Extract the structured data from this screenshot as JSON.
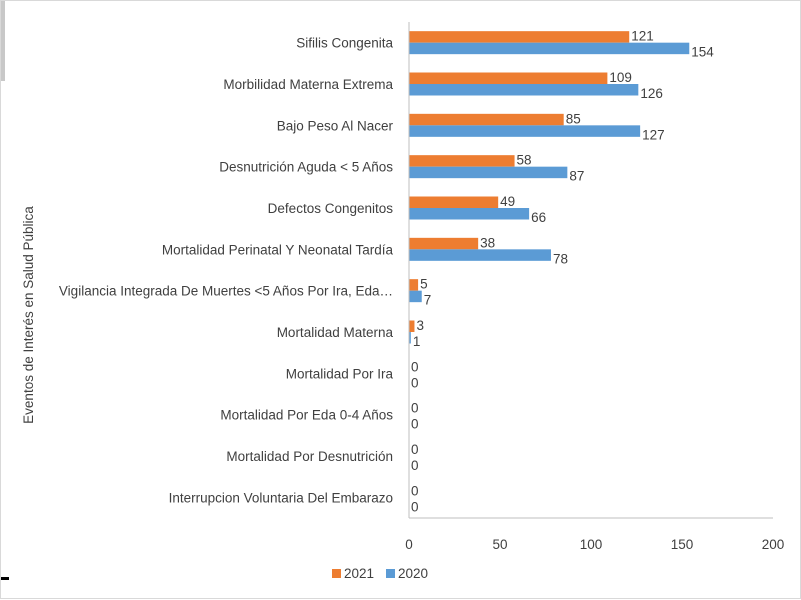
{
  "chart_data": {
    "type": "bar",
    "orientation": "horizontal",
    "title": "",
    "xlabel": "",
    "ylabel": "Eventos de Interés en Salud Pública",
    "xlim": [
      0,
      200
    ],
    "xticks": [
      0,
      50,
      100,
      150,
      200
    ],
    "grid": false,
    "legend_position": "bottom",
    "categories": [
      "Sifilis Congenita",
      "Morbilidad Materna Extrema",
      "Bajo Peso Al Nacer",
      "Desnutrición Aguda < 5 Años",
      "Defectos Congenitos",
      "Mortalidad Perinatal Y Neonatal Tardía",
      "Vigilancia Integrada De Muertes <5 Años Por Ira, Eda…",
      "Mortalidad Materna",
      "Mortalidad Por Ira",
      "Mortalidad Por Eda 0-4 Años",
      "Mortalidad Por Desnutrición",
      "Interrupcion Voluntaria Del Embarazo"
    ],
    "series": [
      {
        "name": "2021",
        "color": "#ed7d31",
        "values": [
          121,
          109,
          85,
          58,
          49,
          38,
          5,
          3,
          0,
          0,
          0,
          0
        ]
      },
      {
        "name": "2020",
        "color": "#5b9bd5",
        "values": [
          154,
          126,
          127,
          87,
          66,
          78,
          7,
          1,
          0,
          0,
          0,
          0
        ]
      }
    ]
  }
}
